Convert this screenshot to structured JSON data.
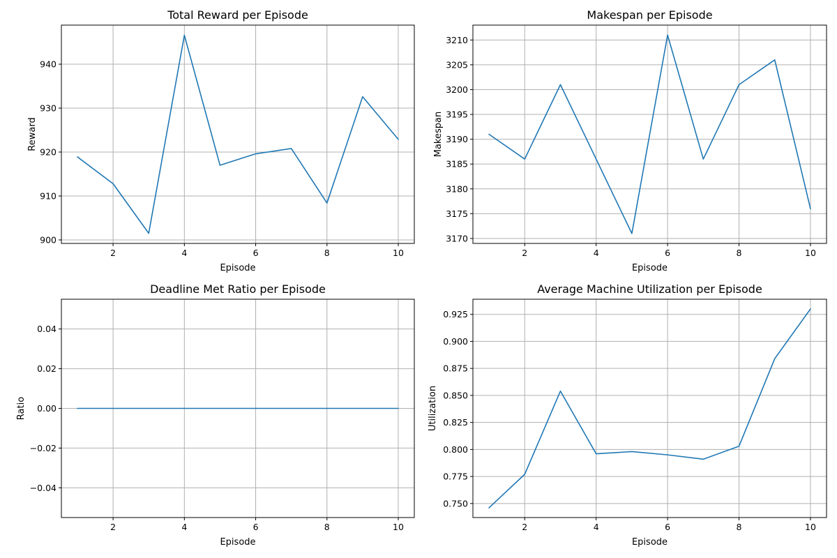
{
  "chart_data": [
    {
      "type": "line",
      "title": "Total Reward per Episode",
      "xlabel": "Episode",
      "ylabel": "Reward",
      "x": [
        1,
        2,
        3,
        4,
        5,
        6,
        7,
        8,
        9,
        10
      ],
      "series": [
        {
          "values": [
            918.9,
            912.8,
            901.5,
            946.6,
            917.0,
            919.6,
            920.8,
            908.4,
            932.6,
            922.9
          ]
        }
      ],
      "xlim": [
        0.55,
        10.45
      ],
      "ylim": [
        899.2,
        948.9
      ],
      "xticks": [
        2,
        4,
        6,
        8,
        10
      ],
      "yticks": [
        900,
        910,
        920,
        930,
        940
      ],
      "ytick_labels": [
        "900",
        "910",
        "920",
        "930",
        "940"
      ],
      "grid": true,
      "color": "#1f77b4"
    },
    {
      "type": "line",
      "title": "Makespan per Episode",
      "xlabel": "Episode",
      "ylabel": "Makespan",
      "x": [
        1,
        2,
        3,
        4,
        5,
        6,
        7,
        8,
        9,
        10
      ],
      "series": [
        {
          "values": [
            3191,
            3186,
            3201,
            3186,
            3171,
            3211,
            3186,
            3201,
            3206,
            3176
          ]
        }
      ],
      "xlim": [
        0.55,
        10.45
      ],
      "ylim": [
        3169,
        3213
      ],
      "xticks": [
        2,
        4,
        6,
        8,
        10
      ],
      "yticks": [
        3170,
        3175,
        3180,
        3185,
        3190,
        3195,
        3200,
        3205,
        3210
      ],
      "ytick_labels": [
        "3170",
        "3175",
        "3180",
        "3185",
        "3190",
        "3195",
        "3200",
        "3205",
        "3210"
      ],
      "grid": true,
      "color": "#1f77b4"
    },
    {
      "type": "line",
      "title": "Deadline Met Ratio per Episode",
      "xlabel": "Episode",
      "ylabel": "Ratio",
      "x": [
        1,
        2,
        3,
        4,
        5,
        6,
        7,
        8,
        9,
        10
      ],
      "series": [
        {
          "values": [
            0,
            0,
            0,
            0,
            0,
            0,
            0,
            0,
            0,
            0
          ]
        }
      ],
      "xlim": [
        0.55,
        10.45
      ],
      "ylim": [
        -0.055,
        0.055
      ],
      "xticks": [
        2,
        4,
        6,
        8,
        10
      ],
      "yticks": [
        -0.04,
        -0.02,
        0.0,
        0.02,
        0.04
      ],
      "ytick_labels": [
        "−0.04",
        "−0.02",
        "0.00",
        "0.02",
        "0.04"
      ],
      "grid": true,
      "color": "#1f77b4"
    },
    {
      "type": "line",
      "title": "Average Machine Utilization per Episode",
      "xlabel": "Episode",
      "ylabel": "Utilization",
      "x": [
        1,
        2,
        3,
        4,
        5,
        6,
        7,
        8,
        9,
        10
      ],
      "series": [
        {
          "values": [
            0.746,
            0.777,
            0.854,
            0.796,
            0.798,
            0.795,
            0.791,
            0.803,
            0.884,
            0.93
          ]
        }
      ],
      "xlim": [
        0.55,
        10.45
      ],
      "ylim": [
        0.737,
        0.939
      ],
      "xticks": [
        2,
        4,
        6,
        8,
        10
      ],
      "yticks": [
        0.75,
        0.775,
        0.8,
        0.825,
        0.85,
        0.875,
        0.9,
        0.925
      ],
      "ytick_labels": [
        "0.750",
        "0.775",
        "0.800",
        "0.825",
        "0.850",
        "0.875",
        "0.900",
        "0.925"
      ],
      "grid": true,
      "color": "#1f77b4"
    }
  ]
}
